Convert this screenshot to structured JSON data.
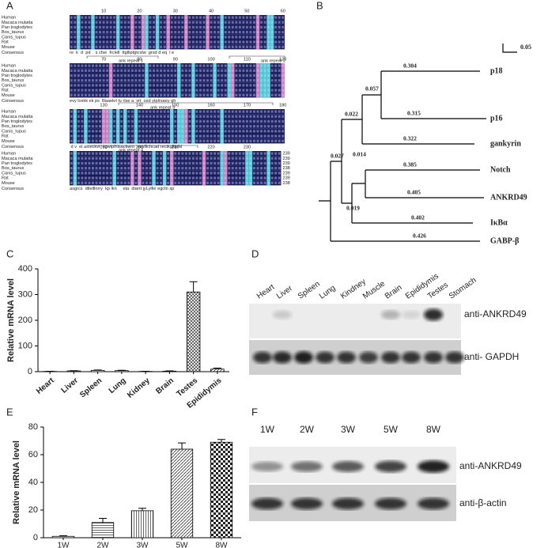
{
  "panel_labels": [
    "A",
    "B",
    "C",
    "D",
    "E",
    "F"
  ],
  "alignment": {
    "species": [
      "Human",
      "Macaca mulatta",
      "Pan troglodytes",
      "Bos_taurus",
      "Canis_lupus",
      "Rat",
      "Mouse"
    ],
    "consensus_label": "Consensus",
    "blocks": [
      {
        "ruler": [
          10,
          20,
          30,
          40,
          50,
          60
        ],
        "consensus": "re  k  d  pd    s cfse  frclell  ttglliptgtcslw  grsd d eq  l e"
      },
      {
        "ruler": [
          70,
          80,
          90,
          100,
          110,
          120
        ],
        "consensus": "evy lcekk ek ps  lllaaekrl tv rlse a  vrt  ced ytplrsaey gh"
      },
      {
        "ruler": [
          130,
          140,
          150,
          160,
          170,
          180
        ],
        "consensus": " d v  el a ceckvt  cgwtplhlsackwrn  vesfllchcad rectkglltplkl"
      },
      {
        "ruler": [
          190,
          200,
          210,
          220,
          230
        ],
        "consensus": "asgrcs  dtlelllnrry  kp lkn     eta  diarrt jyLylfei egctn sp"
      }
    ],
    "repeats": [
      "ank repeat 1",
      "ank repeat 2",
      "ank repeat 3",
      "ank repeat 4"
    ],
    "end_numbers": [
      239,
      239,
      239,
      238,
      239,
      239,
      238
    ]
  },
  "tree": {
    "scale": 0.05,
    "leaves": [
      "p18",
      "p16",
      "gankyrin",
      "Notch",
      "ANKRD49",
      "IκBα",
      "GABP-β"
    ],
    "branch_lengths": [
      0.304,
      0.057,
      0.315,
      0.022,
      0.322,
      0.027,
      0.014,
      0.385,
      0.405,
      0.019,
      0.402,
      0.426
    ]
  },
  "chart_data": [
    {
      "type": "bar",
      "y_label": "Relative mRNA level",
      "categories": [
        "Heart",
        "Liver",
        "Spleen",
        "Lung",
        "Kidney",
        "Brain",
        "Testes",
        "Epididymis"
      ],
      "values": [
        1,
        3,
        5,
        4,
        1,
        2,
        310,
        10
      ],
      "errors": [
        0.5,
        1,
        1.5,
        1.5,
        0.5,
        1,
        40,
        4
      ],
      "ylim": [
        0,
        400
      ],
      "yticks": [
        0,
        100,
        200,
        300,
        400
      ],
      "color": "#000000"
    },
    {
      "type": "bar",
      "y_label": "Relative mRNA level",
      "categories": [
        "1W",
        "2W",
        "3W",
        "5W",
        "8W"
      ],
      "values": [
        1,
        11,
        19.5,
        64,
        69
      ],
      "errors": [
        0.5,
        3,
        1.8,
        4.5,
        2
      ],
      "ylim": [
        0,
        80
      ],
      "yticks": [
        0,
        20,
        40,
        60,
        80
      ],
      "color": "#000000"
    }
  ],
  "blots": [
    {
      "lanes": [
        "Heart",
        "Liver",
        "Spleen",
        "Lung",
        "Kindney",
        "Muscle",
        "Brain",
        "Epididymis",
        "Testes",
        "Stomach"
      ],
      "antibodies": [
        "anti-ANKRD49",
        "anti- GAPDH"
      ]
    },
    {
      "lanes": [
        "1W",
        "2W",
        "3W",
        "5W",
        "8W"
      ],
      "antibodies": [
        "anti-ANKRD49",
        "anti-β-actin"
      ]
    }
  ]
}
